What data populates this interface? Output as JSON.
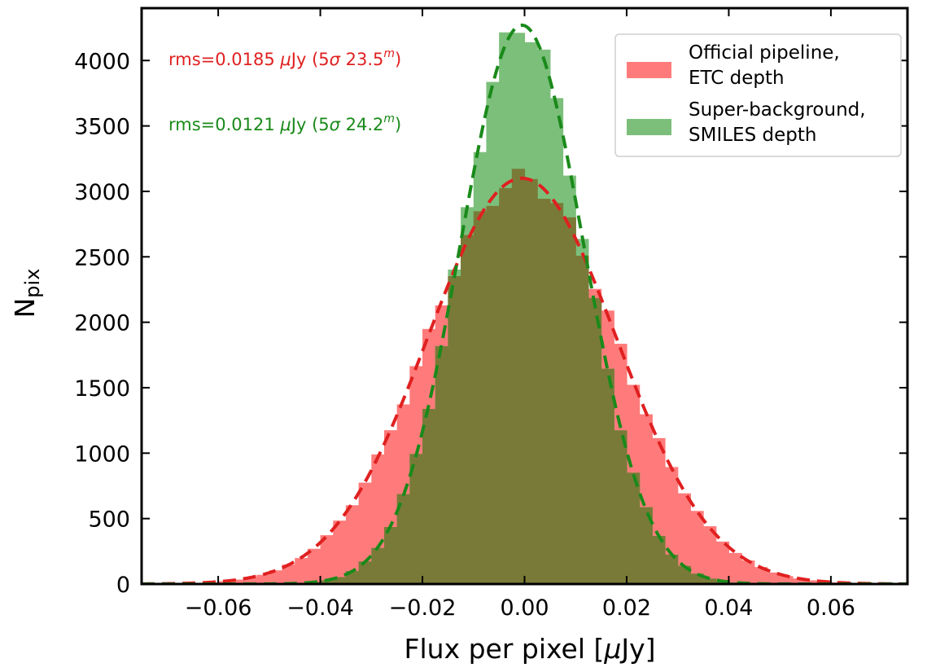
{
  "chart_data": {
    "type": "bar",
    "subtype": "overlaid histogram with gaussian fits",
    "xlabel_main": "Flux per pixel [",
    "xlabel_mu": "μ",
    "xlabel_end": "Jy]",
    "ylabel_main": "N",
    "ylabel_sub": "pix",
    "xlim": [
      -0.075,
      0.075
    ],
    "ylim": [
      0,
      4400
    ],
    "x_ticks": [
      -0.06,
      -0.04,
      -0.02,
      0.0,
      0.02,
      0.04,
      0.06
    ],
    "x_tick_labels": [
      "−0.06",
      "−0.04",
      "−0.02",
      "0.00",
      "0.02",
      "0.04",
      "0.06"
    ],
    "y_ticks": [
      0,
      500,
      1000,
      1500,
      2000,
      2500,
      3000,
      3500,
      4000
    ],
    "y_tick_labels": [
      "0",
      "500",
      "1000",
      "1500",
      "2000",
      "2500",
      "3000",
      "3500",
      "4000"
    ],
    "grid": false,
    "legend_position": "top-right",
    "bin_width": 0.0025,
    "series": [
      {
        "name": "Official pipeline,\nETC depth",
        "legend_line1": "Official pipeline,",
        "legend_line2": "ETC depth",
        "color": "#ff7b7b",
        "fit_color": "#e02020",
        "peak": 3100,
        "center": -0.0005,
        "rms": 0.0185,
        "annotation_prefix": "rms=0.0185 ",
        "annotation_mu": "μ",
        "annotation_mid": "Jy (5",
        "annotation_sigma": "σ",
        "annotation_mag": " 23.5",
        "annotation_sup": "m",
        "annotation_end": ")"
      },
      {
        "name": "Super-background,\nSMILES depth",
        "legend_line1": "Super-background,",
        "legend_line2": "SMILES depth",
        "color": "#7bbf7b",
        "fit_color": "#1a8a1a",
        "peak": 4270,
        "center": -0.0005,
        "rms": 0.0121,
        "annotation_prefix": "rms=0.0121 ",
        "annotation_mu": "μ",
        "annotation_mid": "Jy (5",
        "annotation_sigma": "σ",
        "annotation_mag": " 24.2",
        "annotation_sup": "m",
        "annotation_end": ")"
      }
    ],
    "overlap_color": "#7a7a38"
  }
}
